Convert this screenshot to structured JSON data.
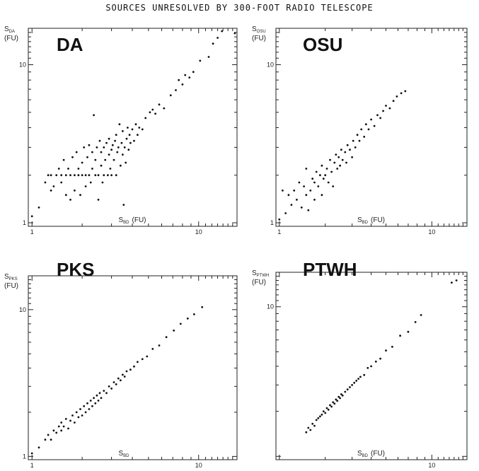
{
  "page_title": "SOURCES UNRESOLVED BY 300-FOOT RADIO TELESCOPE",
  "chart_data": [
    {
      "type": "scatter",
      "panel_label": "DA",
      "xlabel": "S",
      "xlabel_sub": "BD",
      "xlabel_unit": "(FU)",
      "ylabel": "S",
      "ylabel_sub": "DA",
      "ylabel_unit": "(FU)",
      "x_scale": "log",
      "y_scale": "log",
      "xlim": [
        0.95,
        17
      ],
      "ylim": [
        0.95,
        17
      ],
      "x_tick_labels": [
        "1",
        "10"
      ],
      "y_tick_labels": [
        "1",
        "10"
      ],
      "points": [
        [
          1.0,
          1.1
        ],
        [
          1.1,
          1.25
        ],
        [
          1.2,
          1.8
        ],
        [
          1.25,
          2.0
        ],
        [
          1.3,
          1.6
        ],
        [
          1.3,
          2.0
        ],
        [
          1.35,
          1.7
        ],
        [
          1.4,
          2.0
        ],
        [
          1.45,
          2.2
        ],
        [
          1.5,
          1.8
        ],
        [
          1.5,
          2.0
        ],
        [
          1.55,
          2.5
        ],
        [
          1.6,
          1.5
        ],
        [
          1.6,
          2.0
        ],
        [
          1.65,
          2.2
        ],
        [
          1.7,
          1.4
        ],
        [
          1.7,
          2.0
        ],
        [
          1.75,
          2.6
        ],
        [
          1.8,
          1.6
        ],
        [
          1.8,
          2.0
        ],
        [
          1.85,
          2.8
        ],
        [
          1.9,
          2.0
        ],
        [
          1.9,
          2.2
        ],
        [
          1.95,
          1.5
        ],
        [
          2.0,
          2.0
        ],
        [
          2.0,
          2.4
        ],
        [
          2.05,
          3.0
        ],
        [
          2.1,
          1.7
        ],
        [
          2.1,
          2.0
        ],
        [
          2.15,
          2.6
        ],
        [
          2.2,
          2.0
        ],
        [
          2.2,
          3.1
        ],
        [
          2.25,
          1.8
        ],
        [
          2.3,
          2.2
        ],
        [
          2.3,
          2.8
        ],
        [
          2.35,
          4.8
        ],
        [
          2.4,
          2.0
        ],
        [
          2.4,
          2.5
        ],
        [
          2.45,
          3.0
        ],
        [
          2.5,
          1.4
        ],
        [
          2.5,
          2.0
        ],
        [
          2.55,
          3.3
        ],
        [
          2.6,
          2.3
        ],
        [
          2.6,
          2.8
        ],
        [
          2.65,
          1.8
        ],
        [
          2.7,
          2.0
        ],
        [
          2.7,
          3.0
        ],
        [
          2.75,
          2.5
        ],
        [
          2.8,
          3.2
        ],
        [
          2.85,
          2.0
        ],
        [
          2.9,
          2.7
        ],
        [
          2.9,
          3.4
        ],
        [
          2.95,
          2.2
        ],
        [
          3.0,
          2.0
        ],
        [
          3.0,
          2.9
        ],
        [
          3.05,
          3.1
        ],
        [
          3.1,
          2.5
        ],
        [
          3.15,
          3.3
        ],
        [
          3.2,
          2.0
        ],
        [
          3.2,
          3.6
        ],
        [
          3.25,
          2.8
        ],
        [
          3.3,
          3.0
        ],
        [
          3.35,
          4.2
        ],
        [
          3.4,
          2.3
        ],
        [
          3.45,
          3.2
        ],
        [
          3.5,
          2.7
        ],
        [
          3.5,
          3.8
        ],
        [
          3.55,
          1.3
        ],
        [
          3.6,
          3.0
        ],
        [
          3.65,
          2.4
        ],
        [
          3.7,
          3.4
        ],
        [
          3.75,
          4.0
        ],
        [
          3.8,
          2.9
        ],
        [
          3.85,
          3.6
        ],
        [
          3.9,
          3.2
        ],
        [
          4.0,
          3.9
        ],
        [
          4.1,
          3.3
        ],
        [
          4.2,
          4.2
        ],
        [
          4.3,
          3.6
        ],
        [
          4.4,
          4.0
        ],
        [
          4.6,
          3.9
        ],
        [
          4.8,
          4.6
        ],
        [
          5.1,
          5.0
        ],
        [
          5.3,
          5.2
        ],
        [
          5.5,
          4.9
        ],
        [
          5.8,
          5.6
        ],
        [
          6.2,
          5.3
        ],
        [
          6.8,
          6.4
        ],
        [
          7.3,
          6.9
        ],
        [
          7.6,
          8.0
        ],
        [
          8.0,
          7.5
        ],
        [
          8.3,
          8.6
        ],
        [
          8.8,
          8.3
        ],
        [
          9.3,
          9.0
        ],
        [
          10.2,
          10.6
        ],
        [
          11.5,
          11.2
        ],
        [
          12.2,
          13.6
        ],
        [
          13.0,
          14.8
        ],
        [
          13.8,
          16.3
        ],
        [
          16.5,
          15.8
        ]
      ]
    },
    {
      "type": "scatter",
      "panel_label": "OSU",
      "xlabel": "S",
      "xlabel_sub": "BD",
      "xlabel_unit": "(FU)",
      "ylabel": "S",
      "ylabel_sub": "OSU",
      "ylabel_unit": "(FU)",
      "x_scale": "log",
      "y_scale": "log",
      "xlim": [
        0.95,
        17
      ],
      "ylim": [
        0.95,
        17
      ],
      "x_tick_labels": [
        "1",
        "10"
      ],
      "y_tick_labels": [
        "1",
        "10"
      ],
      "points": [
        [
          1.0,
          1.05
        ],
        [
          1.05,
          1.6
        ],
        [
          1.1,
          1.15
        ],
        [
          1.15,
          1.5
        ],
        [
          1.2,
          1.3
        ],
        [
          1.25,
          1.6
        ],
        [
          1.3,
          1.4
        ],
        [
          1.35,
          1.8
        ],
        [
          1.4,
          1.25
        ],
        [
          1.45,
          1.7
        ],
        [
          1.5,
          1.5
        ],
        [
          1.5,
          2.2
        ],
        [
          1.55,
          1.2
        ],
        [
          1.6,
          1.6
        ],
        [
          1.65,
          1.9
        ],
        [
          1.7,
          1.4
        ],
        [
          1.7,
          1.8
        ],
        [
          1.75,
          2.1
        ],
        [
          1.8,
          1.7
        ],
        [
          1.85,
          2.0
        ],
        [
          1.9,
          1.5
        ],
        [
          1.9,
          2.3
        ],
        [
          1.95,
          1.9
        ],
        [
          2.0,
          2.0
        ],
        [
          2.05,
          2.2
        ],
        [
          2.1,
          1.8
        ],
        [
          2.15,
          2.5
        ],
        [
          2.2,
          2.1
        ],
        [
          2.25,
          1.7
        ],
        [
          2.3,
          2.4
        ],
        [
          2.35,
          2.7
        ],
        [
          2.4,
          2.2
        ],
        [
          2.45,
          2.6
        ],
        [
          2.5,
          2.3
        ],
        [
          2.55,
          2.9
        ],
        [
          2.6,
          2.5
        ],
        [
          2.7,
          2.8
        ],
        [
          2.75,
          2.4
        ],
        [
          2.8,
          3.1
        ],
        [
          2.9,
          2.9
        ],
        [
          3.0,
          2.6
        ],
        [
          3.05,
          3.3
        ],
        [
          3.15,
          3.0
        ],
        [
          3.25,
          3.6
        ],
        [
          3.35,
          3.3
        ],
        [
          3.45,
          3.9
        ],
        [
          3.6,
          3.5
        ],
        [
          3.7,
          4.2
        ],
        [
          3.85,
          3.9
        ],
        [
          4.0,
          4.5
        ],
        [
          4.2,
          4.1
        ],
        [
          4.4,
          4.8
        ],
        [
          4.6,
          4.6
        ],
        [
          4.8,
          5.1
        ],
        [
          5.0,
          5.5
        ],
        [
          5.3,
          5.3
        ],
        [
          5.6,
          5.9
        ],
        [
          5.9,
          6.3
        ],
        [
          6.3,
          6.6
        ],
        [
          6.7,
          6.8
        ]
      ]
    },
    {
      "type": "scatter",
      "panel_label": "PKS",
      "xlabel": "S",
      "xlabel_sub": "BD",
      "xlabel_unit": "",
      "ylabel": "S",
      "ylabel_sub": "PKS",
      "ylabel_unit": "(FU)",
      "x_scale": "log",
      "y_scale": "log",
      "xlim": [
        0.95,
        17
      ],
      "ylim": [
        0.95,
        17
      ],
      "x_tick_labels": [
        "1",
        "10"
      ],
      "y_tick_labels": [
        "1",
        "10"
      ],
      "points": [
        [
          1.0,
          1.05
        ],
        [
          1.1,
          1.15
        ],
        [
          1.2,
          1.3
        ],
        [
          1.25,
          1.4
        ],
        [
          1.3,
          1.3
        ],
        [
          1.35,
          1.5
        ],
        [
          1.4,
          1.45
        ],
        [
          1.45,
          1.6
        ],
        [
          1.5,
          1.5
        ],
        [
          1.5,
          1.7
        ],
        [
          1.55,
          1.6
        ],
        [
          1.6,
          1.8
        ],
        [
          1.65,
          1.55
        ],
        [
          1.7,
          1.75
        ],
        [
          1.75,
          1.9
        ],
        [
          1.8,
          1.7
        ],
        [
          1.85,
          2.0
        ],
        [
          1.9,
          1.85
        ],
        [
          1.95,
          2.1
        ],
        [
          2.0,
          1.9
        ],
        [
          2.05,
          2.2
        ],
        [
          2.1,
          2.0
        ],
        [
          2.15,
          2.3
        ],
        [
          2.2,
          2.1
        ],
        [
          2.25,
          2.4
        ],
        [
          2.3,
          2.2
        ],
        [
          2.35,
          2.5
        ],
        [
          2.4,
          2.3
        ],
        [
          2.45,
          2.6
        ],
        [
          2.5,
          2.4
        ],
        [
          2.55,
          2.7
        ],
        [
          2.6,
          2.5
        ],
        [
          2.7,
          2.8
        ],
        [
          2.8,
          2.7
        ],
        [
          2.9,
          3.0
        ],
        [
          3.0,
          2.9
        ],
        [
          3.1,
          3.2
        ],
        [
          3.2,
          3.1
        ],
        [
          3.3,
          3.4
        ],
        [
          3.4,
          3.3
        ],
        [
          3.5,
          3.6
        ],
        [
          3.6,
          3.5
        ],
        [
          3.7,
          3.8
        ],
        [
          3.9,
          3.9
        ],
        [
          4.1,
          4.1
        ],
        [
          4.3,
          4.4
        ],
        [
          4.6,
          4.6
        ],
        [
          4.9,
          4.8
        ],
        [
          5.3,
          5.4
        ],
        [
          5.8,
          5.7
        ],
        [
          6.4,
          6.5
        ],
        [
          7.1,
          7.2
        ],
        [
          7.8,
          8.0
        ],
        [
          8.6,
          8.7
        ],
        [
          9.4,
          9.3
        ],
        [
          10.5,
          10.4
        ]
      ]
    },
    {
      "type": "scatter",
      "panel_label": "PTWH",
      "xlabel": "S",
      "xlabel_sub": "BD",
      "xlabel_unit": "(FU)",
      "ylabel": "S",
      "ylabel_sub": "PTWH",
      "ylabel_unit": "(FU)",
      "x_scale": "log",
      "y_scale": "log",
      "xlim": [
        0.95,
        17
      ],
      "ylim": [
        0.95,
        17
      ],
      "x_tick_labels": [
        "10"
      ],
      "y_tick_labels": [
        "10"
      ],
      "points": [
        [
          1.5,
          1.45
        ],
        [
          1.55,
          1.55
        ],
        [
          1.6,
          1.5
        ],
        [
          1.65,
          1.65
        ],
        [
          1.7,
          1.6
        ],
        [
          1.75,
          1.75
        ],
        [
          1.8,
          1.8
        ],
        [
          1.85,
          1.85
        ],
        [
          1.9,
          1.9
        ],
        [
          1.95,
          2.0
        ],
        [
          2.0,
          1.95
        ],
        [
          2.05,
          2.1
        ],
        [
          2.1,
          2.05
        ],
        [
          2.15,
          2.2
        ],
        [
          2.2,
          2.15
        ],
        [
          2.25,
          2.3
        ],
        [
          2.3,
          2.25
        ],
        [
          2.35,
          2.4
        ],
        [
          2.4,
          2.35
        ],
        [
          2.45,
          2.5
        ],
        [
          2.5,
          2.45
        ],
        [
          2.55,
          2.6
        ],
        [
          2.6,
          2.55
        ],
        [
          2.7,
          2.7
        ],
        [
          2.8,
          2.8
        ],
        [
          2.9,
          2.9
        ],
        [
          3.0,
          3.0
        ],
        [
          3.1,
          3.1
        ],
        [
          3.2,
          3.2
        ],
        [
          3.3,
          3.3
        ],
        [
          3.4,
          3.4
        ],
        [
          3.6,
          3.5
        ],
        [
          3.8,
          3.9
        ],
        [
          4.0,
          4.0
        ],
        [
          4.3,
          4.3
        ],
        [
          4.6,
          4.5
        ],
        [
          5.0,
          5.1
        ],
        [
          5.5,
          5.4
        ],
        [
          6.2,
          6.4
        ],
        [
          7.0,
          6.8
        ],
        [
          7.8,
          7.9
        ],
        [
          8.5,
          8.8
        ],
        [
          13.5,
          14.5
        ],
        [
          14.5,
          15.0
        ]
      ]
    }
  ]
}
